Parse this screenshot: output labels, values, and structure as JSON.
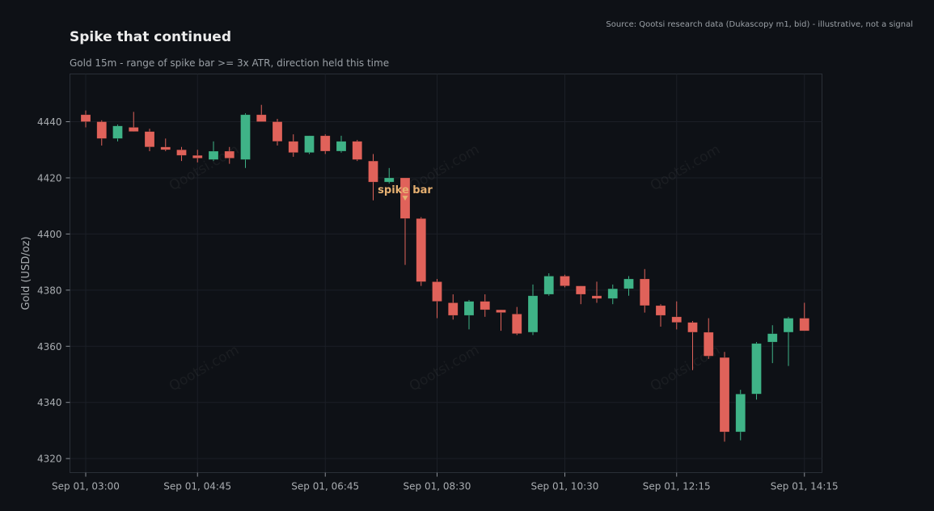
{
  "title": "Spike that continued",
  "subtitle": "Gold 15m - range of spike bar >= 3x ATR, direction held this time",
  "source": "Source: Qootsi research data (Dukascopy m1, bid) - illustrative, not a signal",
  "watermark": "Qootsi.com",
  "colors": {
    "background": "#0e1116",
    "up": "#3fb387",
    "down": "#e0625a",
    "grid": "#1b1f26",
    "annotation": "#e6b071"
  },
  "chart_data": {
    "type": "candlestick",
    "ylabel": "Gold (USD/oz)",
    "ylim": [
      4315,
      4457
    ],
    "yticks": [
      4320,
      4340,
      4360,
      4380,
      4400,
      4420,
      4440
    ],
    "xticks": [
      {
        "label": "Sep 01, 03:00",
        "index": 0
      },
      {
        "label": "Sep 01, 04:45",
        "index": 7
      },
      {
        "label": "Sep 01, 06:45",
        "index": 15
      },
      {
        "label": "Sep 01, 08:30",
        "index": 22
      },
      {
        "label": "Sep 01, 10:30",
        "index": 30
      },
      {
        "label": "Sep 01, 12:15",
        "index": 37
      },
      {
        "label": "Sep 01, 14:15",
        "index": 45
      }
    ],
    "grid": true,
    "annotation": {
      "text": "spike bar",
      "index": 20
    },
    "candles": [
      {
        "o": 4442.5,
        "h": 4444.0,
        "l": 4438.0,
        "c": 4440.0
      },
      {
        "o": 4440.0,
        "h": 4440.5,
        "l": 4431.5,
        "c": 4434.0
      },
      {
        "o": 4434.0,
        "h": 4439.0,
        "l": 4433.0,
        "c": 4438.5
      },
      {
        "o": 4438.0,
        "h": 4443.5,
        "l": 4436.5,
        "c": 4436.5
      },
      {
        "o": 4436.5,
        "h": 4437.5,
        "l": 4429.5,
        "c": 4431.0
      },
      {
        "o": 4431.0,
        "h": 4434.0,
        "l": 4429.5,
        "c": 4430.0
      },
      {
        "o": 4430.0,
        "h": 4431.0,
        "l": 4426.0,
        "c": 4428.0
      },
      {
        "o": 4428.0,
        "h": 4430.0,
        "l": 4425.5,
        "c": 4427.0
      },
      {
        "o": 4426.5,
        "h": 4433.0,
        "l": 4426.0,
        "c": 4429.5
      },
      {
        "o": 4429.5,
        "h": 4431.0,
        "l": 4425.0,
        "c": 4427.0
      },
      {
        "o": 4426.5,
        "h": 4443.0,
        "l": 4423.5,
        "c": 4442.5
      },
      {
        "o": 4442.5,
        "h": 4446.0,
        "l": 4440.0,
        "c": 4440.0
      },
      {
        "o": 4440.0,
        "h": 4441.0,
        "l": 4431.5,
        "c": 4433.0
      },
      {
        "o": 4433.0,
        "h": 4435.5,
        "l": 4427.5,
        "c": 4429.0
      },
      {
        "o": 4429.0,
        "h": 4435.0,
        "l": 4428.5,
        "c": 4435.0
      },
      {
        "o": 4435.0,
        "h": 4435.5,
        "l": 4428.5,
        "c": 4429.5
      },
      {
        "o": 4429.5,
        "h": 4435.0,
        "l": 4429.0,
        "c": 4433.0
      },
      {
        "o": 4433.0,
        "h": 4433.5,
        "l": 4426.0,
        "c": 4426.5
      },
      {
        "o": 4426.0,
        "h": 4428.5,
        "l": 4412.0,
        "c": 4418.5
      },
      {
        "o": 4418.5,
        "h": 4423.5,
        "l": 4418.0,
        "c": 4420.0
      },
      {
        "o": 4420.0,
        "h": 4420.0,
        "l": 4389.0,
        "c": 4405.5
      },
      {
        "o": 4405.5,
        "h": 4406.0,
        "l": 4381.5,
        "c": 4383.0
      },
      {
        "o": 4383.0,
        "h": 4384.0,
        "l": 4370.0,
        "c": 4376.0
      },
      {
        "o": 4375.5,
        "h": 4378.5,
        "l": 4369.5,
        "c": 4371.0
      },
      {
        "o": 4371.0,
        "h": 4376.5,
        "l": 4366.0,
        "c": 4376.0
      },
      {
        "o": 4376.0,
        "h": 4378.5,
        "l": 4370.5,
        "c": 4373.0
      },
      {
        "o": 4373.0,
        "h": 4373.0,
        "l": 4365.5,
        "c": 4372.0
      },
      {
        "o": 4371.5,
        "h": 4374.0,
        "l": 4364.0,
        "c": 4364.5
      },
      {
        "o": 4365.0,
        "h": 4382.0,
        "l": 4364.0,
        "c": 4378.0
      },
      {
        "o": 4378.5,
        "h": 4386.0,
        "l": 4378.0,
        "c": 4385.0
      },
      {
        "o": 4385.0,
        "h": 4385.5,
        "l": 4381.0,
        "c": 4381.5
      },
      {
        "o": 4381.5,
        "h": 4381.5,
        "l": 4375.0,
        "c": 4378.5
      },
      {
        "o": 4378.0,
        "h": 4383.0,
        "l": 4375.5,
        "c": 4377.0
      },
      {
        "o": 4377.0,
        "h": 4382.0,
        "l": 4375.0,
        "c": 4380.5
      },
      {
        "o": 4380.5,
        "h": 4385.0,
        "l": 4378.0,
        "c": 4384.0
      },
      {
        "o": 4384.0,
        "h": 4387.5,
        "l": 4372.0,
        "c": 4374.5
      },
      {
        "o": 4374.5,
        "h": 4375.0,
        "l": 4367.0,
        "c": 4371.0
      },
      {
        "o": 4370.5,
        "h": 4376.0,
        "l": 4366.0,
        "c": 4368.5
      },
      {
        "o": 4368.5,
        "h": 4369.0,
        "l": 4351.5,
        "c": 4365.0
      },
      {
        "o": 4365.0,
        "h": 4370.0,
        "l": 4355.5,
        "c": 4356.5
      },
      {
        "o": 4356.0,
        "h": 4358.0,
        "l": 4326.0,
        "c": 4329.5
      },
      {
        "o": 4329.5,
        "h": 4344.5,
        "l": 4326.5,
        "c": 4343.0
      },
      {
        "o": 4343.0,
        "h": 4361.5,
        "l": 4341.0,
        "c": 4361.0
      },
      {
        "o": 4361.5,
        "h": 4367.5,
        "l": 4354.0,
        "c": 4364.5
      },
      {
        "o": 4365.0,
        "h": 4370.5,
        "l": 4353.0,
        "c": 4370.0
      },
      {
        "o": 4370.0,
        "h": 4375.5,
        "l": 4365.5,
        "c": 4365.5
      }
    ]
  }
}
